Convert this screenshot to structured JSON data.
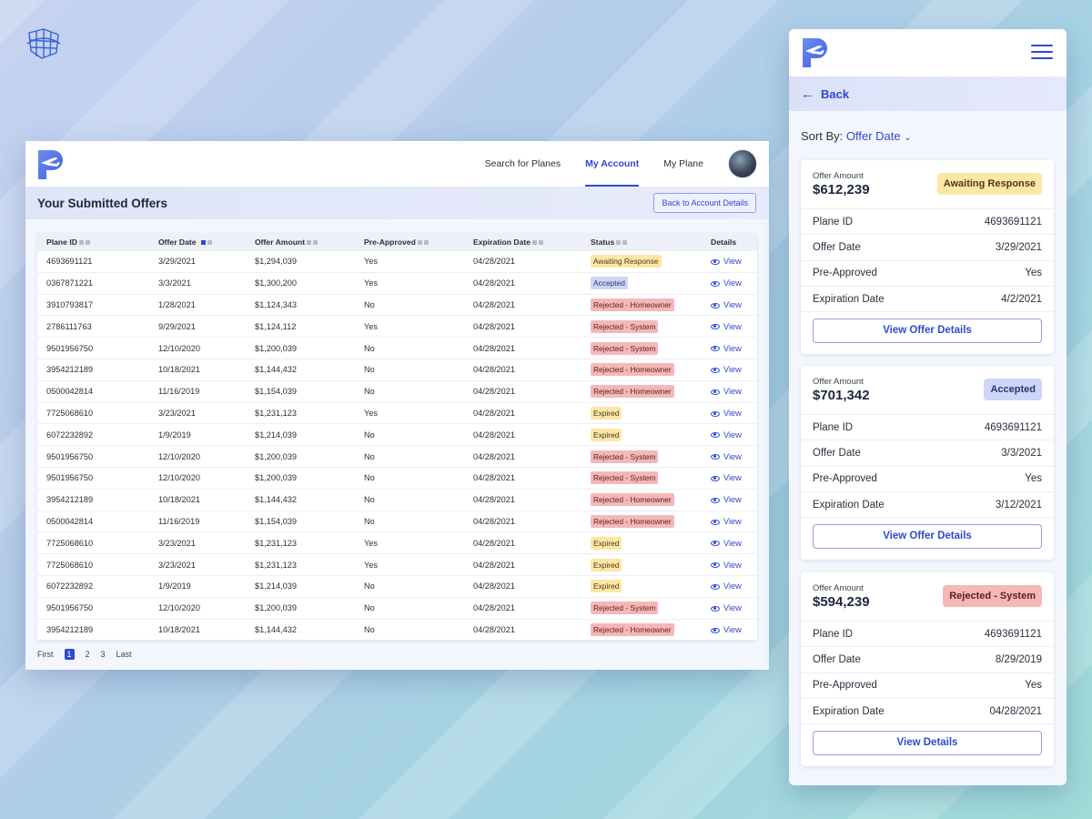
{
  "desktop": {
    "nav": {
      "links": [
        "Search for Planes",
        "My Account",
        "My Plane"
      ],
      "active": 1
    },
    "header": {
      "title": "Your Submitted Offers",
      "back_button": "Back to Account Details"
    },
    "table": {
      "columns": [
        "Plane ID",
        "Offer Date",
        "Offer Amount",
        "Pre-Approved",
        "Expiration Date",
        "Status",
        "Details"
      ],
      "rows": [
        [
          "4693691121",
          "3/29/2021",
          "$1,294,039",
          "Yes",
          "04/28/2021",
          "Awaiting Response",
          "View"
        ],
        [
          "0367871221",
          "3/3/2021",
          "$1,300,200",
          "Yes",
          "04/28/2021",
          "Accepted",
          "View"
        ],
        [
          "3910793817",
          "1/28/2021",
          "$1,124,343",
          "No",
          "04/28/2021",
          "Rejected - Homeowner",
          "View"
        ],
        [
          "2786111763",
          "9/29/2021",
          "$1,124,112",
          "Yes",
          "04/28/2021",
          "Rejected - System",
          "View"
        ],
        [
          "9501956750",
          "12/10/2020",
          "$1,200,039",
          "No",
          "04/28/2021",
          "Rejected - System",
          "View"
        ],
        [
          "3954212189",
          "10/18/2021",
          "$1,144,432",
          "No",
          "04/28/2021",
          "Rejected - Homeowner",
          "View"
        ],
        [
          "0500042814",
          "11/16/2019",
          "$1,154,039",
          "No",
          "04/28/2021",
          "Rejected - Homeowner",
          "View"
        ],
        [
          "7725068610",
          "3/23/2021",
          "$1,231,123",
          "Yes",
          "04/28/2021",
          "Expired",
          "View"
        ],
        [
          "6072232892",
          "1/9/2019",
          "$1,214,039",
          "No",
          "04/28/2021",
          "Expired",
          "View"
        ],
        [
          "9501956750",
          "12/10/2020",
          "$1,200,039",
          "No",
          "04/28/2021",
          "Rejected - System",
          "View"
        ],
        [
          "9501956750",
          "12/10/2020",
          "$1,200,039",
          "No",
          "04/28/2021",
          "Rejected - System",
          "View"
        ],
        [
          "3954212189",
          "10/18/2021",
          "$1,144,432",
          "No",
          "04/28/2021",
          "Rejected - Homeowner",
          "View"
        ],
        [
          "0500042814",
          "11/16/2019",
          "$1,154,039",
          "No",
          "04/28/2021",
          "Rejected - Homeowner",
          "View"
        ],
        [
          "7725068610",
          "3/23/2021",
          "$1,231,123",
          "Yes",
          "04/28/2021",
          "Expired",
          "View"
        ],
        [
          "7725068610",
          "3/23/2021",
          "$1,231,123",
          "Yes",
          "04/28/2021",
          "Expired",
          "View"
        ],
        [
          "6072232892",
          "1/9/2019",
          "$1,214,039",
          "No",
          "04/28/2021",
          "Expired",
          "View"
        ],
        [
          "9501956750",
          "12/10/2020",
          "$1,200,039",
          "No",
          "04/28/2021",
          "Rejected - System",
          "View"
        ],
        [
          "3954212189",
          "10/18/2021",
          "$1,144,432",
          "No",
          "04/28/2021",
          "Rejected - Homeowner",
          "View"
        ]
      ]
    },
    "pager": {
      "first": "First",
      "pages": [
        "1",
        "2",
        "3"
      ],
      "current": "1",
      "last": "Last"
    }
  },
  "mobile": {
    "back": "Back",
    "sort_label": "Sort By:",
    "sort_value": "Offer Date",
    "cards": [
      {
        "amount_label": "Offer Amount",
        "amount": "$612,239",
        "status": "Awaiting Response",
        "fields": [
          [
            "Plane ID",
            "4693691121"
          ],
          [
            "Offer Date",
            "3/29/2021"
          ],
          [
            "Pre-Approved",
            "Yes"
          ],
          [
            "Expiration Date",
            "4/2/2021"
          ]
        ],
        "button": "View Offer Details"
      },
      {
        "amount_label": "Offer Amount",
        "amount": "$701,342",
        "status": "Accepted",
        "fields": [
          [
            "Plane ID",
            "4693691121"
          ],
          [
            "Offer Date",
            "3/3/2021"
          ],
          [
            "Pre-Approved",
            "Yes"
          ],
          [
            "Expiration Date",
            "3/12/2021"
          ]
        ],
        "button": "View Offer Details"
      },
      {
        "amount_label": "Offer Amount",
        "amount": "$594,239",
        "status": "Rejected - System",
        "fields": [
          [
            "Plane ID",
            "4693691121"
          ],
          [
            "Offer Date",
            "8/29/2019"
          ],
          [
            "Pre-Approved",
            "Yes"
          ],
          [
            "Expiration Date",
            "04/28/2021"
          ]
        ],
        "button": "View Details"
      }
    ]
  },
  "colors": {
    "accent": "#2f49d1",
    "awaiting": "#fde7a6",
    "accepted": "#cdd6f6",
    "rejected": "#f5b8b8",
    "expired": "#fde7a6"
  },
  "icons": [
    "logo-p-plane-icon",
    "plan-sketch-icon",
    "eye-icon",
    "arrow-left-icon",
    "chevron-down-icon",
    "hamburger-menu-icon"
  ]
}
